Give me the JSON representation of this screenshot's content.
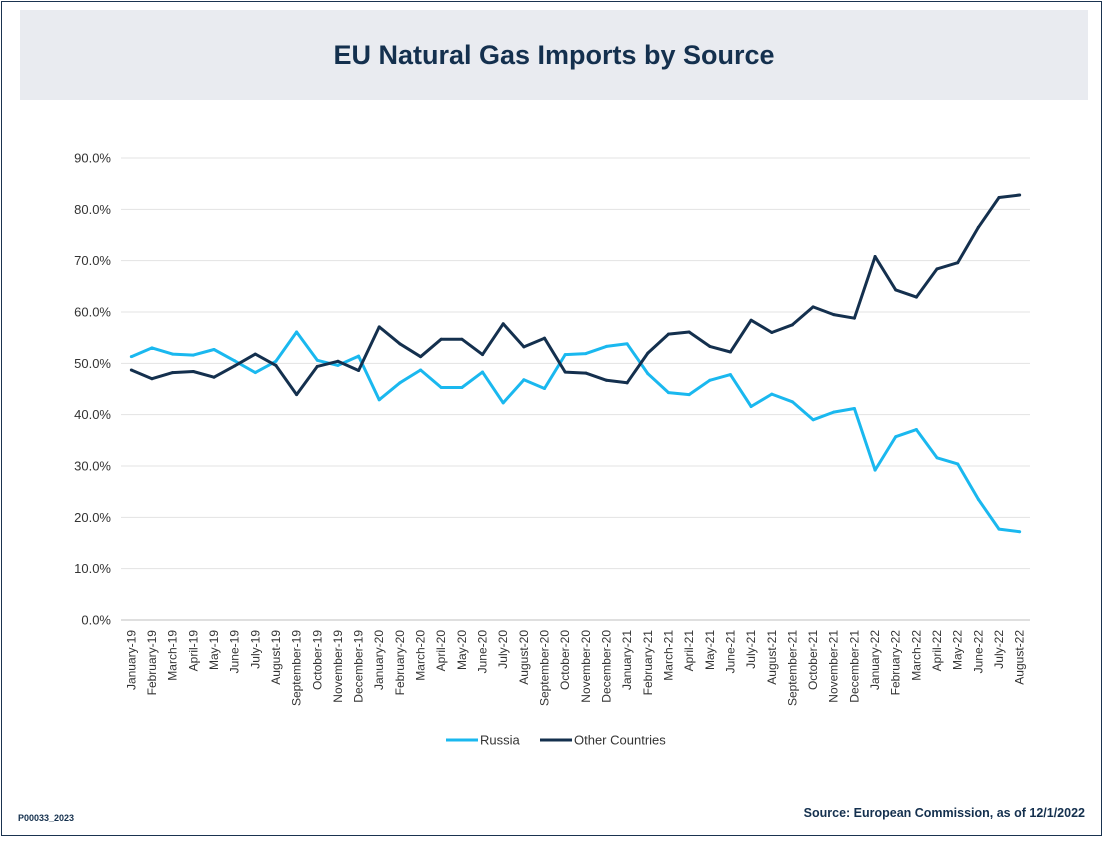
{
  "title": "EU Natural Gas Imports by Source",
  "footer": {
    "code": "P00033_2023",
    "source": "Source: European Commission, as of 12/1/2022"
  },
  "chart_data": {
    "type": "line",
    "title": "EU Natural Gas Imports by Source",
    "ylim": [
      0,
      90
    ],
    "yticks": [
      "0.0%",
      "10.0%",
      "20.0%",
      "30.0%",
      "40.0%",
      "50.0%",
      "60.0%",
      "70.0%",
      "80.0%",
      "90.0%"
    ],
    "grid": true,
    "legend_position": "bottom",
    "categories": [
      "January-19",
      "February-19",
      "March-19",
      "April-19",
      "May-19",
      "June-19",
      "July-19",
      "August-19",
      "September-19",
      "October-19",
      "November-19",
      "December-19",
      "January-20",
      "February-20",
      "March-20",
      "April-20",
      "May-20",
      "June-20",
      "July-20",
      "August-20",
      "September-20",
      "October-20",
      "November-20",
      "December-20",
      "January-21",
      "February-21",
      "March-21",
      "April-21",
      "May-21",
      "June-21",
      "July-21",
      "August-21",
      "September-21",
      "October-21",
      "November-21",
      "December-21",
      "January-22",
      "February-22",
      "March-22",
      "April-22",
      "May-22",
      "June-22",
      "July-22",
      "August-22"
    ],
    "series": [
      {
        "name": "Russia",
        "color": "#1ab8ef",
        "values": [
          51.3,
          53.0,
          51.8,
          51.6,
          52.7,
          50.5,
          48.2,
          50.4,
          56.1,
          50.6,
          49.6,
          51.4,
          42.9,
          46.2,
          48.7,
          45.3,
          45.3,
          48.3,
          42.3,
          46.8,
          45.1,
          51.7,
          51.9,
          53.3,
          53.8,
          48.0,
          44.3,
          43.9,
          46.7,
          47.8,
          41.6,
          44.0,
          42.5,
          39.0,
          40.5,
          41.2,
          29.2,
          35.7,
          37.1,
          31.6,
          30.4,
          23.5,
          17.7,
          17.2
        ]
      },
      {
        "name": "Other Countries",
        "color": "#14304e",
        "values": [
          48.7,
          47.0,
          48.2,
          48.4,
          47.3,
          49.5,
          51.8,
          49.6,
          43.9,
          49.4,
          50.4,
          48.6,
          57.1,
          53.8,
          51.3,
          54.7,
          54.7,
          51.7,
          57.7,
          53.2,
          54.9,
          48.3,
          48.1,
          46.7,
          46.2,
          52.0,
          55.7,
          56.1,
          53.3,
          52.2,
          58.4,
          56.0,
          57.5,
          61.0,
          59.5,
          58.8,
          70.8,
          64.3,
          62.9,
          68.4,
          69.6,
          76.5,
          82.3,
          82.8
        ]
      }
    ]
  }
}
